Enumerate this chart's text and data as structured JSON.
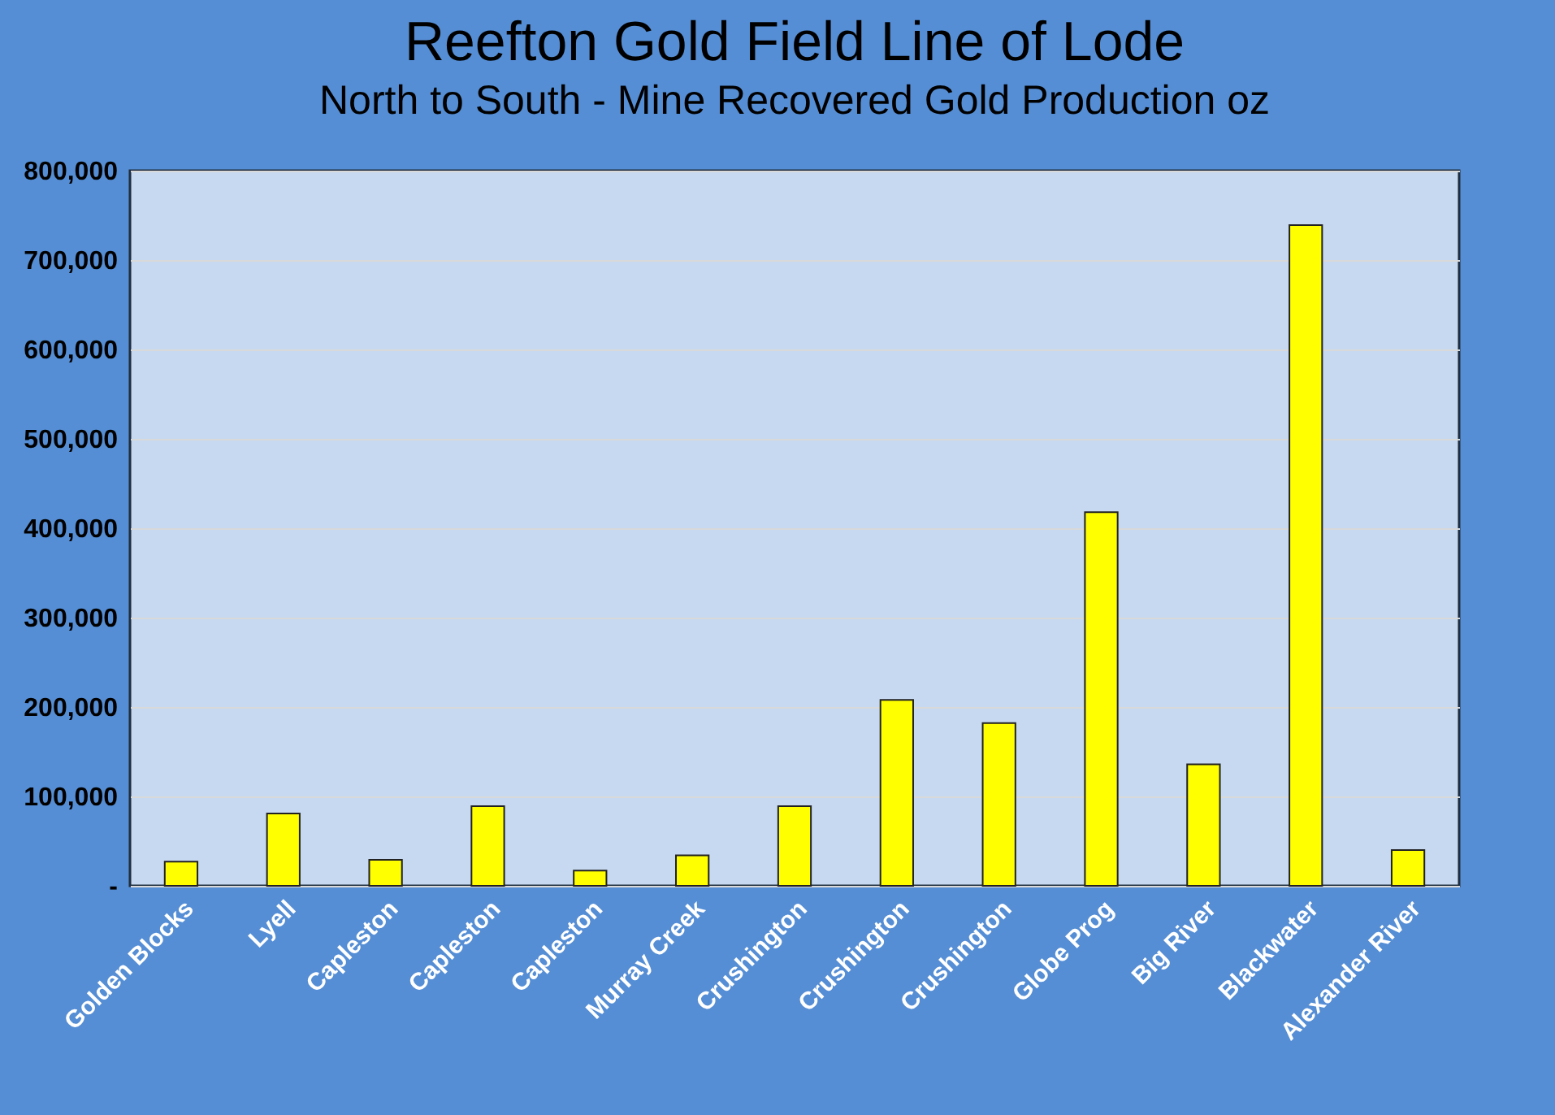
{
  "chart_data": {
    "type": "bar",
    "title": "Reefton Gold Field Line of Lode",
    "subtitle": "North to South - Mine Recovered Gold Production  oz",
    "categories": [
      "Golden Blocks",
      "Lyell",
      "Capleston",
      "Capleston",
      "Capleston",
      "Murray Creek",
      "Crushington",
      "Crushington",
      "Crushington",
      "Globe Prog",
      "Big River",
      "Blackwater",
      "Alexander River"
    ],
    "values": [
      27000,
      81000,
      29000,
      89000,
      17000,
      34000,
      89000,
      208000,
      182000,
      418000,
      136000,
      739000,
      40000
    ],
    "color": "#ffff00",
    "ylim": [
      0,
      800000
    ],
    "yticks": [
      {
        "value": 0,
        "label": "-"
      },
      {
        "value": 100000,
        "label": "100,000"
      },
      {
        "value": 200000,
        "label": "200,000"
      },
      {
        "value": 300000,
        "label": "300,000"
      },
      {
        "value": 400000,
        "label": "400,000"
      },
      {
        "value": 500000,
        "label": "500,000"
      },
      {
        "value": 600000,
        "label": "600,000"
      },
      {
        "value": 700000,
        "label": "700,000"
      },
      {
        "value": 800000,
        "label": "800,000"
      }
    ],
    "grid": "y"
  }
}
